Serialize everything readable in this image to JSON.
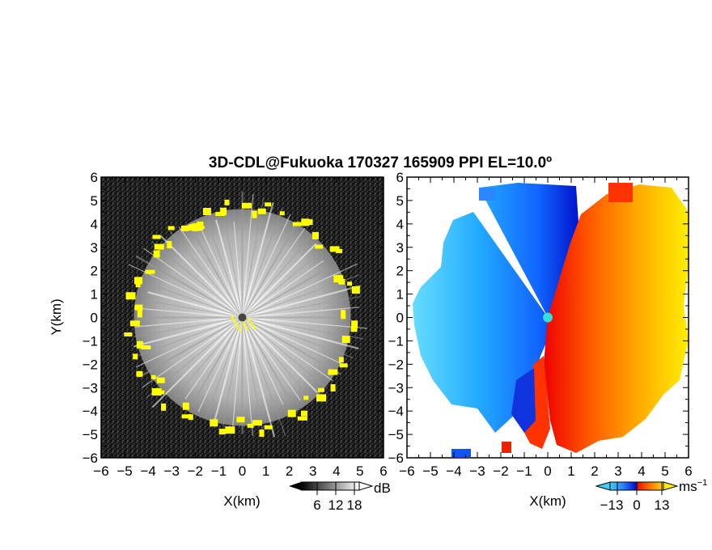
{
  "title": "3D-CDL@Fukuoka 170327 165909 PPI EL=10.0º",
  "chart_data": [
    {
      "type": "heatmap",
      "panel": "reflectivity",
      "xlabel": "X(km)",
      "ylabel": "Y(km)",
      "xlim": [
        -6,
        6
      ],
      "ylim": [
        -6,
        6
      ],
      "xticks": [
        "−6",
        "−5",
        "−4",
        "−3",
        "−2",
        "−1",
        "0",
        "1",
        "2",
        "3",
        "4",
        "5",
        "6"
      ],
      "yticks": [
        "6",
        "5",
        "4",
        "3",
        "2",
        "1",
        "0",
        "−1",
        "−2",
        "−3",
        "−4",
        "−5",
        "−6"
      ],
      "colorbar": {
        "unit": "dB",
        "ticks": [
          "6",
          "12",
          "18"
        ],
        "range": [
          0,
          20
        ],
        "colormap": "grayscale",
        "extend": "both"
      },
      "echo_radius_km": 4.6,
      "center": [
        0,
        0
      ],
      "highlight_color": "#ffff00",
      "background_color": "#111111"
    },
    {
      "type": "heatmap",
      "panel": "doppler-velocity",
      "xlabel": "X(km)",
      "xlim": [
        -6,
        6
      ],
      "ylim": [
        -6,
        6
      ],
      "xticks": [
        "−6",
        "−5",
        "−4",
        "−3",
        "−2",
        "−1",
        "0",
        "1",
        "2",
        "3",
        "4",
        "5",
        "6"
      ],
      "yticks": [
        "6",
        "5",
        "4",
        "3",
        "2",
        "1",
        "0",
        "−1",
        "−2",
        "−3",
        "−4",
        "−5",
        "−6"
      ],
      "colorbar": {
        "unit": "ms",
        "unit_exponent": "−1",
        "ticks": [
          "−13",
          "0",
          "13"
        ],
        "range": [
          -15,
          15
        ],
        "colormap": "blue-cyan-red-yellow",
        "extend": "both"
      },
      "flow": "negative (toward radar) west, positive (away) east",
      "center_marker_color": "#33dddd"
    }
  ]
}
